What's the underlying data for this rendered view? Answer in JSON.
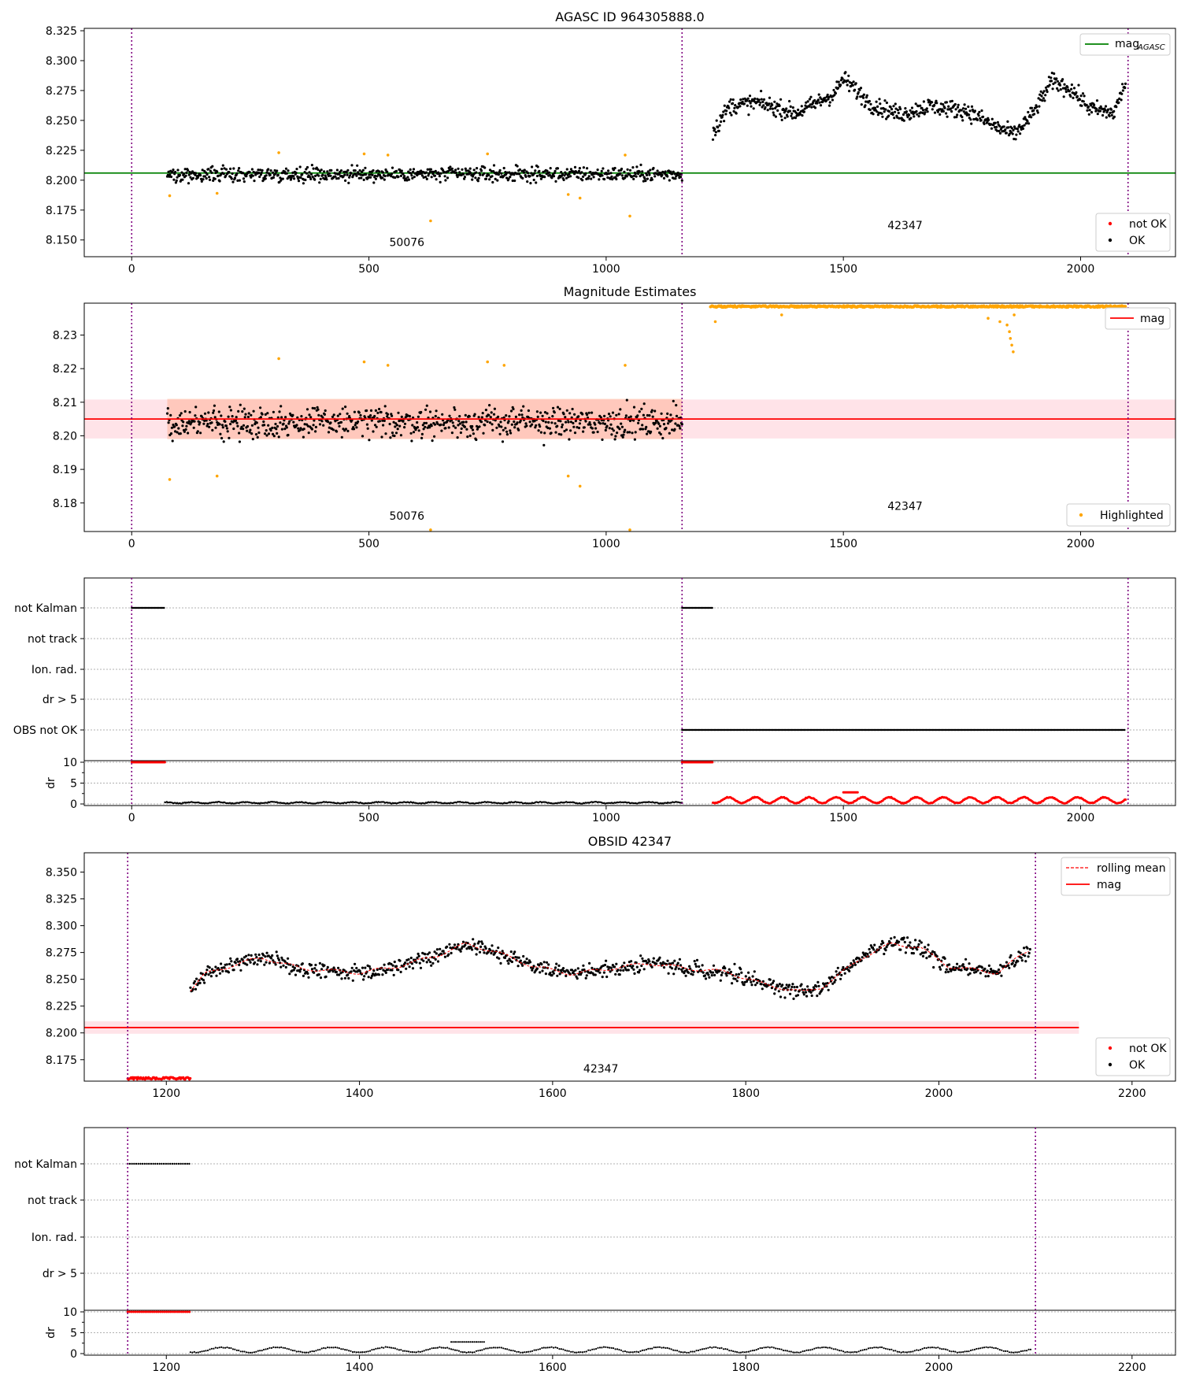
{
  "figure": {
    "title": "AGASC ID 964305888.0",
    "observations": [
      {
        "label": "50076",
        "start": 0,
        "end": 1160
      },
      {
        "label": "42347",
        "start": 1160,
        "end": 2100
      }
    ],
    "colors": {
      "ok": "#000000",
      "not_ok": "#ff0000",
      "highlighted": "#ffa500",
      "agasc_line": "#008000",
      "mag_line": "#ff0000",
      "obs_boundary": "#800080",
      "band_outer": "#ffc0cb",
      "band_inner": "#ffa07a"
    }
  },
  "chart_data": [
    {
      "type": "scatter",
      "title": "AGASC ID 964305888.0",
      "xlim": [
        -100,
        2200
      ],
      "ylim": [
        8.136,
        8.327
      ],
      "xticks": [
        0,
        500,
        1000,
        1500,
        2000
      ],
      "yticks": [
        8.15,
        8.175,
        8.2,
        8.225,
        8.25,
        8.275,
        8.3,
        8.325
      ],
      "grid": false,
      "legend": [
        {
          "label": "mag",
          "sub": "AGASC",
          "type": "line",
          "placement": "upper right"
        },
        {
          "label": "not OK",
          "type": "point",
          "placement": "lower right"
        },
        {
          "label": "OK",
          "type": "point",
          "placement": "lower right"
        }
      ],
      "agasc_mag": 8.206,
      "annotations": [
        {
          "text": "50076",
          "x": 580,
          "y": 8.145
        },
        {
          "text": "42347",
          "x": 1630,
          "y": 8.159
        }
      ],
      "series": [
        {
          "name": "OK",
          "segments": [
            {
              "x": [
                75,
                1160
              ],
              "mean": 8.205,
              "spread": 0.006
            },
            {
              "x": [
                1225,
                2095
              ],
              "knots": [
                [
                  1225,
                  8.24
                ],
                [
                  1260,
                  8.262
                ],
                [
                  1320,
                  8.265
                ],
                [
                  1400,
                  8.256
                ],
                [
                  1480,
                  8.272
                ],
                [
                  1500,
                  8.285
                ],
                [
                  1560,
                  8.263
                ],
                [
                  1620,
                  8.255
                ],
                [
                  1680,
                  8.262
                ],
                [
                  1760,
                  8.258
                ],
                [
                  1820,
                  8.245
                ],
                [
                  1860,
                  8.238
                ],
                [
                  1900,
                  8.256
                ],
                [
                  1940,
                  8.283
                ],
                [
                  1980,
                  8.276
                ],
                [
                  2020,
                  8.26
                ],
                [
                  2070,
                  8.256
                ],
                [
                  2095,
                  8.282
                ]
              ],
              "spread": 0.007
            }
          ]
        }
      ],
      "highlighted_points": [
        [
          80,
          8.187
        ],
        [
          180,
          8.189
        ],
        [
          310,
          8.223
        ],
        [
          490,
          8.222
        ],
        [
          540,
          8.221
        ],
        [
          630,
          8.166
        ],
        [
          750,
          8.222
        ],
        [
          920,
          8.188
        ],
        [
          945,
          8.185
        ],
        [
          1040,
          8.221
        ],
        [
          1050,
          8.17
        ]
      ]
    },
    {
      "type": "scatter",
      "title": "Magnitude Estimates",
      "xlim": [
        -100,
        2200
      ],
      "ylim": [
        8.1715,
        8.2395
      ],
      "xticks": [
        0,
        500,
        1000,
        1500,
        2000
      ],
      "yticks": [
        8.18,
        8.19,
        8.2,
        8.21,
        8.22,
        8.23
      ],
      "grid": false,
      "legend": [
        {
          "label": "mag",
          "type": "line",
          "placement": "upper right"
        },
        {
          "label": "Highlighted",
          "type": "point",
          "placement": "lower right"
        }
      ],
      "mag": 8.205,
      "mag_band": [
        8.1992,
        8.2108
      ],
      "inner_band": {
        "x": [
          75,
          1160
        ],
        "y": [
          8.199,
          8.211
        ]
      },
      "annotations": [
        {
          "text": "50076",
          "x": 580,
          "y": 8.175
        },
        {
          "text": "42347",
          "x": 1630,
          "y": 8.178
        }
      ],
      "series": [
        {
          "name": "OK",
          "segments": [
            {
              "x": [
                75,
                1160
              ],
              "mean": 8.204,
              "spread": 0.0045
            }
          ]
        }
      ],
      "highlighted_points": [
        [
          80,
          8.187
        ],
        [
          180,
          8.188
        ],
        [
          310,
          8.223
        ],
        [
          490,
          8.222
        ],
        [
          540,
          8.221
        ],
        [
          630,
          8.172
        ],
        [
          750,
          8.222
        ],
        [
          785,
          8.221
        ],
        [
          920,
          8.188
        ],
        [
          945,
          8.185
        ],
        [
          1040,
          8.221
        ],
        [
          1050,
          8.172
        ],
        [
          1230,
          8.234
        ],
        [
          1370,
          8.236
        ],
        [
          1805,
          8.235
        ],
        [
          1830,
          8.234
        ],
        [
          1845,
          8.233
        ],
        [
          1850,
          8.231
        ],
        [
          1852,
          8.229
        ],
        [
          1855,
          8.227
        ],
        [
          1858,
          8.225
        ],
        [
          1860,
          8.236
        ]
      ],
      "clipped_top_range": [
        1220,
        2095
      ],
      "clipped_top_value": 8.2385
    },
    {
      "type": "scatter",
      "title": "",
      "xlim": [
        -100,
        2200
      ],
      "flag_rows": [
        "not Kalman",
        "not track",
        "Ion. rad.",
        "dr > 5",
        "OBS not OK"
      ],
      "flags": [
        {
          "row": "not Kalman",
          "x": [
            0,
            70
          ]
        },
        {
          "row": "not Kalman",
          "x": [
            1160,
            1225
          ]
        },
        {
          "row": "OBS not OK",
          "x": [
            1160,
            2095
          ]
        }
      ],
      "dr": {
        "ylabel": "dr",
        "yticks": [
          0,
          5,
          10
        ],
        "ylim": [
          -0.5,
          10.5
        ],
        "xticks": [
          0,
          500,
          1000,
          1500,
          2000
        ],
        "not_ok_clipped": [
          [
            0,
            70
          ],
          [
            1160,
            1225
          ]
        ],
        "ok_segments": [
          {
            "x": [
              70,
              1160
            ],
            "mean": 0.3,
            "amp": 0.15
          }
        ],
        "not_ok_segments": [
          {
            "x": [
              1225,
              2095
            ],
            "mean": 0.9,
            "amp": 0.7
          }
        ],
        "not_ok_high": [
          1500,
          1530,
          2.8
        ]
      }
    },
    {
      "type": "line",
      "title": "OBSID 42347",
      "xlim": [
        1115,
        2245
      ],
      "ylim": [
        8.155,
        8.368
      ],
      "xticks": [
        1200,
        1400,
        1600,
        1800,
        2000,
        2200
      ],
      "yticks": [
        8.175,
        8.2,
        8.225,
        8.25,
        8.275,
        8.3,
        8.325,
        8.35
      ],
      "grid": false,
      "legend": [
        {
          "label": "rolling mean",
          "type": "dashed-line",
          "placement": "upper right"
        },
        {
          "label": "mag",
          "type": "line",
          "placement": "upper right"
        },
        {
          "label": "not OK",
          "type": "point",
          "placement": "lower right"
        },
        {
          "label": "OK",
          "type": "point",
          "placement": "lower right"
        }
      ],
      "mag": 8.205,
      "mag_band": [
        8.1992,
        8.2108
      ],
      "annotation": {
        "text": "42347",
        "x": 1650,
        "y": 8.163
      },
      "not_ok_clipped": [
        1160,
        1225,
        8.1575
      ],
      "series": [
        {
          "name": "OK",
          "segments": [
            {
              "x": [
                1225,
                2095
              ],
              "knots": [
                [
                  1225,
                  8.24
                ],
                [
                  1240,
                  8.255
                ],
                [
                  1280,
                  8.266
                ],
                [
                  1300,
                  8.27
                ],
                [
                  1340,
                  8.26
                ],
                [
                  1400,
                  8.256
                ],
                [
                  1440,
                  8.262
                ],
                [
                  1480,
                  8.272
                ],
                [
                  1510,
                  8.283
                ],
                [
                  1540,
                  8.276
                ],
                [
                  1580,
                  8.262
                ],
                [
                  1620,
                  8.255
                ],
                [
                  1660,
                  8.26
                ],
                [
                  1700,
                  8.265
                ],
                [
                  1740,
                  8.26
                ],
                [
                  1780,
                  8.257
                ],
                [
                  1820,
                  8.245
                ],
                [
                  1860,
                  8.238
                ],
                [
                  1880,
                  8.243
                ],
                [
                  1920,
                  8.27
                ],
                [
                  1950,
                  8.283
                ],
                [
                  1980,
                  8.28
                ],
                [
                  2010,
                  8.262
                ],
                [
                  2060,
                  8.256
                ],
                [
                  2085,
                  8.272
                ],
                [
                  2095,
                  8.278
                ]
              ],
              "spread": 0.007
            }
          ]
        }
      ]
    },
    {
      "type": "scatter",
      "title": "",
      "xlim": [
        1115,
        2245
      ],
      "flag_rows": [
        "not Kalman",
        "not track",
        "Ion. rad.",
        "dr > 5"
      ],
      "flags": [
        {
          "row": "not Kalman",
          "x": [
            1160,
            1225
          ]
        }
      ],
      "dr": {
        "ylabel": "dr",
        "yticks": [
          0,
          5,
          10
        ],
        "ylim": [
          -0.5,
          10.5
        ],
        "xticks": [
          1200,
          1400,
          1600,
          1800,
          2000,
          2200
        ],
        "not_ok_clipped": [
          [
            1160,
            1225
          ]
        ],
        "ok_segments": [
          {
            "x": [
              1225,
              2095
            ],
            "mean": 0.9,
            "amp": 0.6
          }
        ],
        "not_ok_segments": [],
        "ok_high": [
          1495,
          1530,
          2.8
        ]
      }
    }
  ]
}
